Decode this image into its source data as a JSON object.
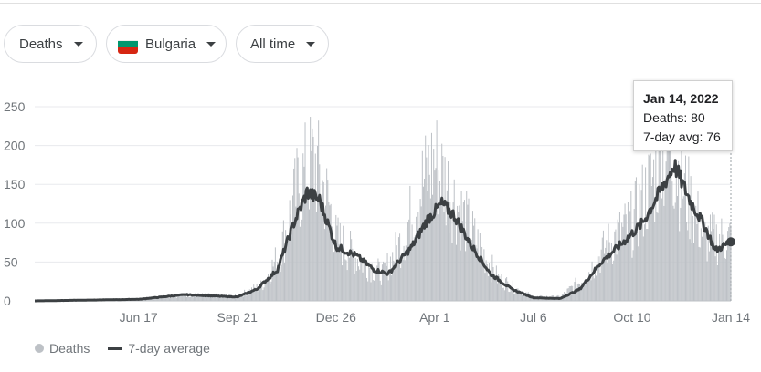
{
  "filters": {
    "metric": "Deaths",
    "country": "Bulgaria",
    "range": "All time"
  },
  "colors": {
    "bars": "#bdc1c6",
    "line": "#3c4043",
    "grid": "#e8eaed",
    "flag": [
      "#ffffff",
      "#00966e",
      "#d62612"
    ]
  },
  "tooltip": {
    "date": "Jan 14, 2022",
    "deaths_label": "Deaths: 80",
    "avg_label": "7-day avg: 76"
  },
  "legend": {
    "bars_label": "Deaths",
    "line_label": "7-day average"
  },
  "chart_data": {
    "type": "bar",
    "title": "",
    "xlabel": "",
    "ylabel": "",
    "ylim": [
      0,
      250
    ],
    "yticks": [
      0,
      50,
      100,
      150,
      200,
      250
    ],
    "xticks": [
      "Jun 17",
      "Sep 21",
      "Dec 26",
      "Apr 1",
      "Jul 6",
      "Oct 10",
      "Jan 14"
    ],
    "grid": true,
    "legend_position": "bottom-left",
    "x_start": "2020-03-08",
    "x_end": "2022-01-14",
    "series": [
      {
        "name": "Deaths",
        "kind": "bar",
        "keyframes": [
          [
            "2020-03-08",
            0
          ],
          [
            "2020-06-17",
            2
          ],
          [
            "2020-08-01",
            8
          ],
          [
            "2020-09-21",
            6
          ],
          [
            "2020-10-15",
            20
          ],
          [
            "2020-11-01",
            60
          ],
          [
            "2020-11-20",
            150
          ],
          [
            "2020-12-05",
            180
          ],
          [
            "2020-12-20",
            120
          ],
          [
            "2020-12-26",
            80
          ],
          [
            "2021-01-20",
            50
          ],
          [
            "2021-02-10",
            35
          ],
          [
            "2021-03-01",
            80
          ],
          [
            "2021-03-20",
            150
          ],
          [
            "2021-04-01",
            180
          ],
          [
            "2021-04-20",
            130
          ],
          [
            "2021-05-10",
            80
          ],
          [
            "2021-06-01",
            30
          ],
          [
            "2021-06-20",
            15
          ],
          [
            "2021-07-06",
            5
          ],
          [
            "2021-08-01",
            5
          ],
          [
            "2021-08-25",
            30
          ],
          [
            "2021-09-15",
            70
          ],
          [
            "2021-10-10",
            100
          ],
          [
            "2021-11-01",
            160
          ],
          [
            "2021-11-15",
            200
          ],
          [
            "2021-12-01",
            140
          ],
          [
            "2021-12-20",
            80
          ],
          [
            "2022-01-14",
            80
          ]
        ]
      },
      {
        "name": "7-day average",
        "kind": "line",
        "keyframes": [
          [
            "2020-03-08",
            0
          ],
          [
            "2020-06-17",
            2
          ],
          [
            "2020-08-01",
            8
          ],
          [
            "2020-09-21",
            5
          ],
          [
            "2020-10-10",
            15
          ],
          [
            "2020-10-30",
            40
          ],
          [
            "2020-11-15",
            100
          ],
          [
            "2020-11-28",
            140
          ],
          [
            "2020-12-10",
            130
          ],
          [
            "2020-12-26",
            70
          ],
          [
            "2021-01-15",
            58
          ],
          [
            "2021-02-01",
            40
          ],
          [
            "2021-02-15",
            35
          ],
          [
            "2021-03-10",
            70
          ],
          [
            "2021-03-25",
            105
          ],
          [
            "2021-04-08",
            125
          ],
          [
            "2021-04-20",
            110
          ],
          [
            "2021-05-05",
            75
          ],
          [
            "2021-05-25",
            35
          ],
          [
            "2021-06-15",
            15
          ],
          [
            "2021-07-06",
            4
          ],
          [
            "2021-08-01",
            3
          ],
          [
            "2021-08-20",
            15
          ],
          [
            "2021-09-10",
            50
          ],
          [
            "2021-10-01",
            75
          ],
          [
            "2021-10-20",
            100
          ],
          [
            "2021-11-10",
            150
          ],
          [
            "2021-11-20",
            175
          ],
          [
            "2021-12-05",
            130
          ],
          [
            "2021-12-20",
            95
          ],
          [
            "2021-12-30",
            65
          ],
          [
            "2022-01-14",
            76
          ]
        ]
      }
    ],
    "highlight": {
      "date": "2022-01-14",
      "deaths": 80,
      "avg": 76
    }
  }
}
